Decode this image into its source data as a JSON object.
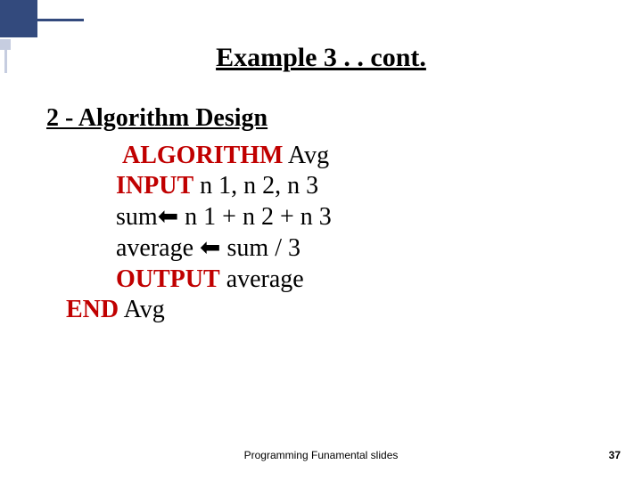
{
  "decoration": {
    "primary_color": "#334a7d",
    "secondary_color": "#c6cde0"
  },
  "title": "Example 3 . . cont.",
  "section_heading": "2 - Algorithm Design",
  "algorithm": {
    "keyword_color": "#c00000",
    "lines": {
      "l1_kw": "ALGORITHM",
      "l1_rest": " Avg",
      "l2_kw": "INPUT",
      "l2_rest": " n 1, n 2, n 3",
      "l3_pre": "sum",
      "l3_arrow": "⬅",
      "l3_rest": " n 1 + n 2 + n 3",
      "l4_pre": "average ",
      "l4_arrow": "⬅",
      "l4_rest": " sum / 3",
      "l5_kw": "OUTPUT",
      "l5_rest": " average",
      "l6_kw": "END",
      "l6_rest": " Avg"
    },
    "indent_inner": "        ",
    "indent_first": "         ",
    "indent_outer": ""
  },
  "footer": "Programming Funamental slides",
  "page_number": "37"
}
